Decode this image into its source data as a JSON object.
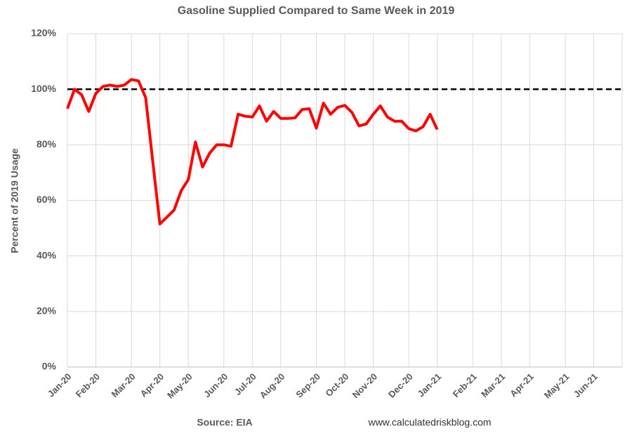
{
  "chart_data": {
    "type": "line",
    "title": "Gasoline Supplied Compared to Same Week in 2019",
    "y_label": "Percent of 2019 Usage",
    "source": "Source: EIA",
    "website": "www.calculatedriskblog.com",
    "categories": [
      "Jan-20",
      null,
      null,
      null,
      "Feb-20",
      null,
      null,
      null,
      null,
      "Mar-20",
      null,
      null,
      null,
      "Apr-20",
      null,
      null,
      null,
      "May-20",
      null,
      null,
      null,
      null,
      "Jun-20",
      null,
      null,
      null,
      "Jul-20",
      null,
      null,
      null,
      "Aug-20",
      null,
      null,
      null,
      null,
      "Sep-20",
      null,
      null,
      null,
      "Oct-20",
      null,
      null,
      null,
      "Nov-20",
      null,
      null,
      null,
      null,
      "Dec-20",
      null,
      null,
      null,
      "Jan-21",
      null,
      null,
      null,
      null,
      "Feb-21",
      null,
      null,
      null,
      "Mar-21",
      null,
      null,
      null,
      "Apr-21",
      null,
      null,
      null,
      null,
      "May-21",
      null,
      null,
      null,
      "Jun-21",
      null,
      null,
      null,
      null
    ],
    "series": [
      {
        "name": "Gasoline Supplied",
        "color": "#ff0000",
        "values": [
          93,
          100,
          98,
          92,
          98.5,
          101,
          101.5,
          101,
          101.5,
          103.5,
          103,
          97,
          74,
          51.5,
          54,
          56.5,
          63.5,
          67.5,
          81,
          72,
          77,
          80,
          80,
          79.5,
          91,
          90.3,
          90,
          94,
          88.5,
          92,
          89.5,
          89.5,
          89.7,
          92.7,
          93,
          86,
          95,
          91,
          93.5,
          94.2,
          91.7,
          86.8,
          87.5,
          91,
          94,
          90,
          88.5,
          88.5,
          85.8,
          85,
          86.5,
          91,
          85.5,
          null,
          null,
          null,
          null,
          null,
          null,
          null,
          null,
          null,
          null,
          null,
          null,
          null,
          null,
          null,
          null,
          null,
          null,
          null,
          null,
          null,
          null,
          null,
          null,
          null,
          null
        ]
      }
    ],
    "reference_line": {
      "value": 100,
      "color": "#000000"
    },
    "ylim": [
      0,
      120
    ],
    "yticks": [
      {
        "value": 0,
        "label": "0%"
      },
      {
        "value": 20,
        "label": "20%"
      },
      {
        "value": 40,
        "label": "40%"
      },
      {
        "value": 60,
        "label": "60%"
      },
      {
        "value": 80,
        "label": "80%"
      },
      {
        "value": 100,
        "label": "100%"
      },
      {
        "value": 120,
        "label": "120%"
      }
    ],
    "grid": true
  }
}
